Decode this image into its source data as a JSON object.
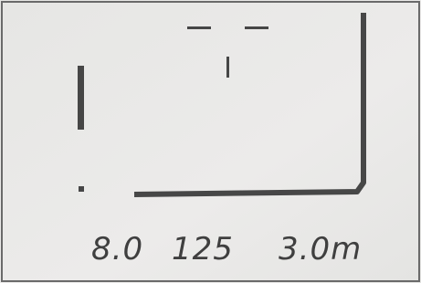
{
  "display": {
    "aperture": "8.0",
    "shutter": "125",
    "distance": "3.0m"
  }
}
